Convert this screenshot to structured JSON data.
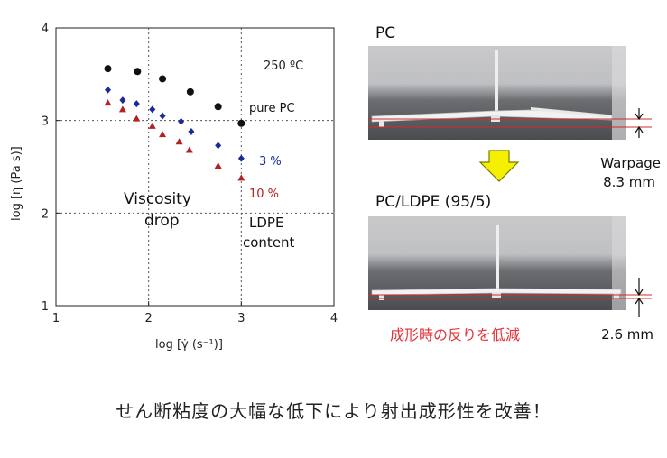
{
  "chart_data": {
    "type": "scatter",
    "xlabel": "log [γ̇ (s⁻¹)]",
    "ylabel": "log [η (Pa s)]",
    "xlim": [
      1,
      4
    ],
    "ylim": [
      1,
      4
    ],
    "xticks": [
      "1",
      "2",
      "3",
      "4"
    ],
    "yticks": [
      "1",
      "2",
      "3",
      "4"
    ],
    "grid": "dashed at 2 and 3",
    "series": [
      {
        "name": "pure PC",
        "color": "#111111",
        "marker": "circle",
        "x": [
          1.56,
          1.88,
          2.15,
          2.45,
          2.75,
          3.0
        ],
        "y": [
          3.56,
          3.53,
          3.45,
          3.31,
          3.15,
          2.97
        ]
      },
      {
        "name": "3 %",
        "color": "#1a2a9a",
        "marker": "diamond",
        "x": [
          1.56,
          1.72,
          1.87,
          2.04,
          2.15,
          2.35,
          2.46,
          2.75,
          3.0
        ],
        "y": [
          3.33,
          3.22,
          3.18,
          3.12,
          3.05,
          2.99,
          2.88,
          2.73,
          2.59
        ]
      },
      {
        "name": "10 %",
        "color": "#b22222",
        "marker": "triangle",
        "x": [
          1.56,
          1.72,
          1.87,
          2.04,
          2.15,
          2.33,
          2.44,
          2.75,
          3.0
        ],
        "y": [
          3.19,
          3.12,
          3.02,
          2.94,
          2.85,
          2.77,
          2.68,
          2.51,
          2.38
        ]
      }
    ],
    "annotations": {
      "temperature": "250 ºC",
      "viscosity_line1": "Viscosity",
      "viscosity_line2": "drop",
      "ldpe_line1": "LDPE",
      "ldpe_line2": "content"
    }
  },
  "photos": {
    "top_label": "PC",
    "bottom_label": "PC/LDPE (95/5)",
    "warpage_label": "Warpage",
    "warpage_value": "8.3 mm",
    "reduced_value": "2.6 mm",
    "reduction_note": "成形時の反りを低減"
  },
  "caption": "せん断粘度の大幅な低下により射出成形性を改善！",
  "colors": {
    "arrow_fill": "#f5ef00",
    "arrow_stroke": "#7a7a00",
    "red_line": "#d42a2a"
  }
}
